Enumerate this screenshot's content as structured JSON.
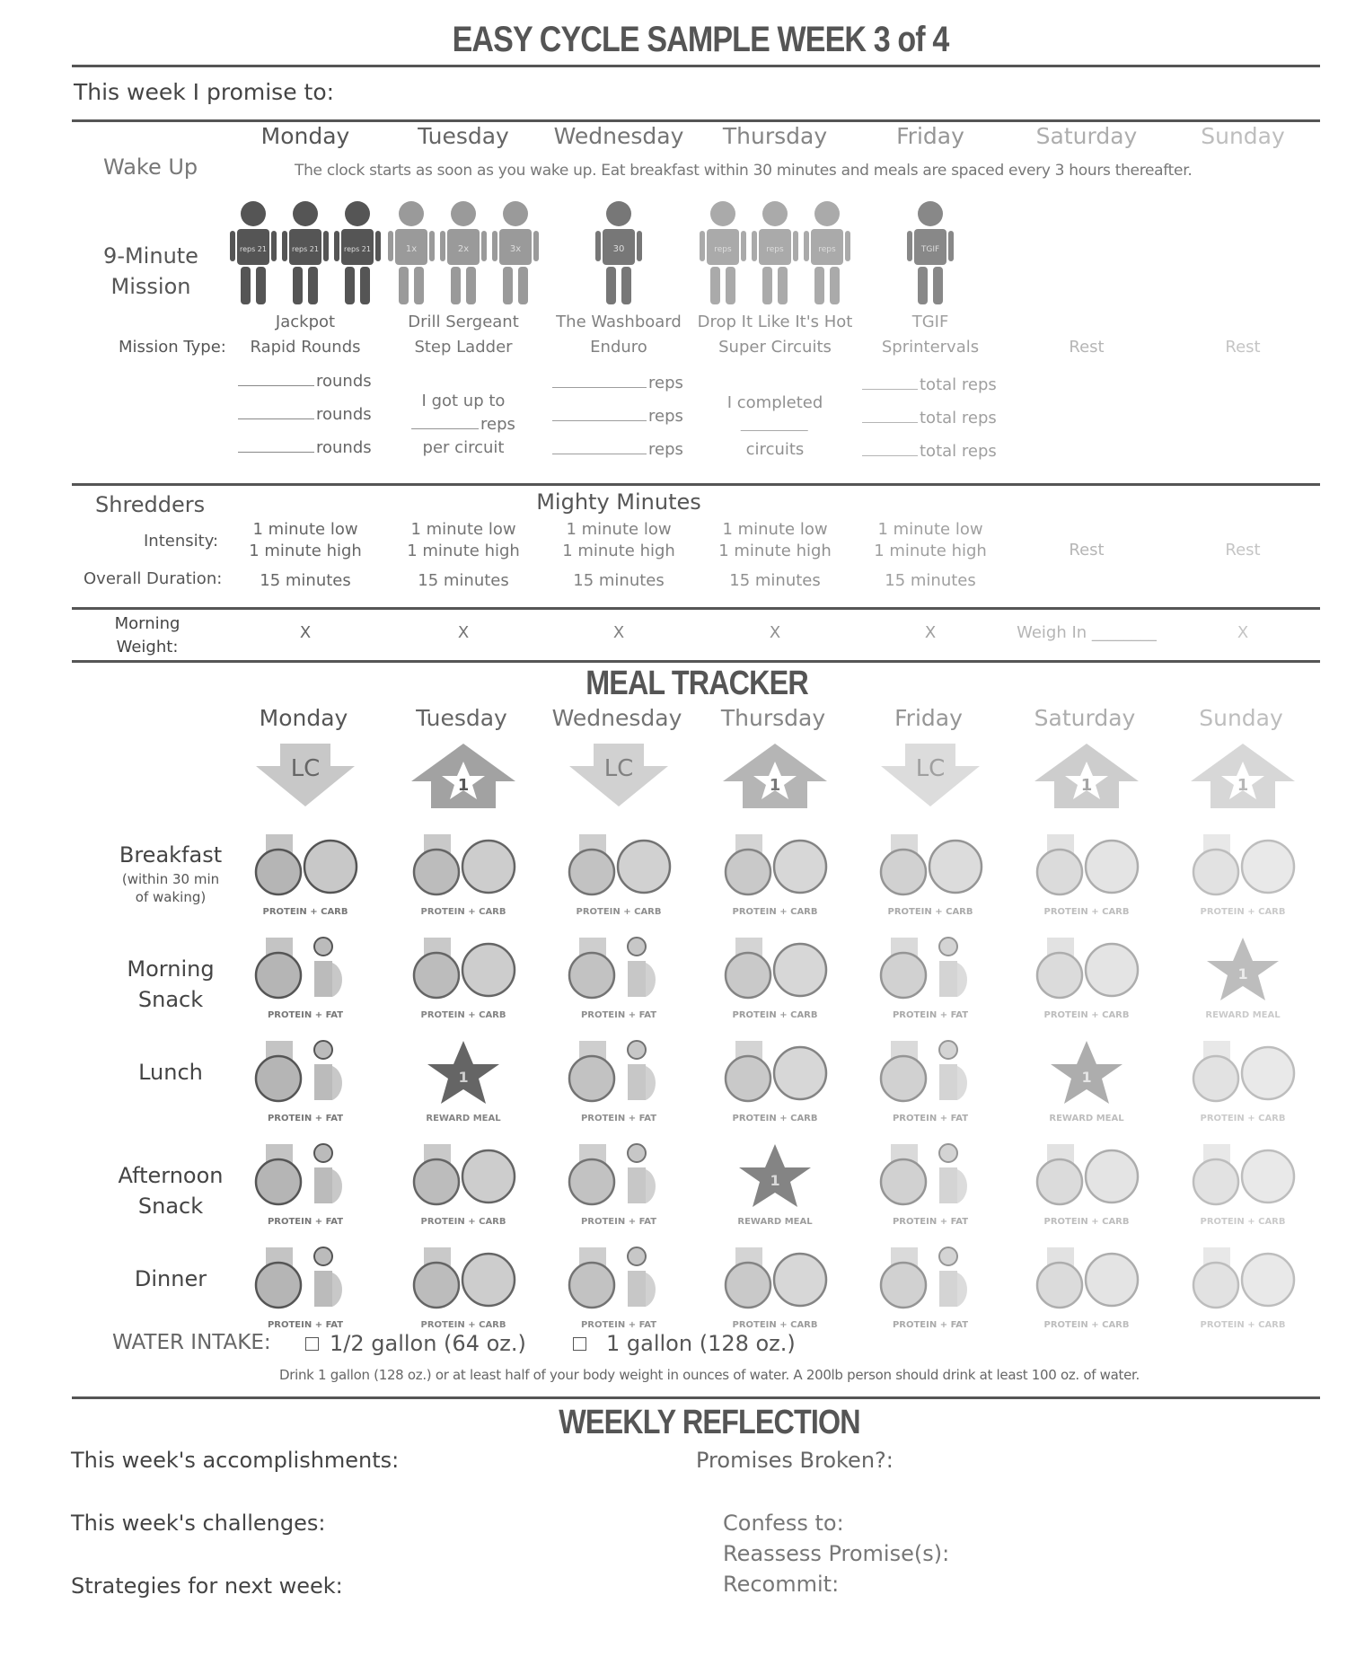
{
  "title": "EASY CYCLE SAMPLE WEEK 3 of 4",
  "promise_label": "This week I promise to:",
  "days": [
    "Monday",
    "Tuesday",
    "Wednesday",
    "Thursday",
    "Friday",
    "Saturday",
    "Sunday"
  ],
  "wake_up": {
    "label": "Wake Up",
    "text": "The clock starts as soon as you wake up. Eat breakfast within 30 minutes and meals are spaced every 3 hours thereafter."
  },
  "mission": {
    "label": "9-Minute Mission",
    "type_label": "Mission Type:",
    "names": [
      "Jackpot",
      "Drill Sergeant",
      "The Washboard",
      "Drop It Like It's Hot",
      "TGIF",
      "",
      ""
    ],
    "types": [
      "Rapid Rounds",
      "Step Ladder",
      "Enduro",
      "Super Circuits",
      "Sprintervals",
      "Rest",
      "Rest"
    ],
    "figure_labels": [
      "reps 21",
      "1x",
      "2x",
      "3x",
      "30",
      "reps",
      "TGIF"
    ],
    "entries": {
      "monday": [
        "rounds",
        "rounds",
        "rounds"
      ],
      "tuesday": [
        "I got up to",
        "reps",
        "per circuit"
      ],
      "wednesday": [
        "reps",
        "reps",
        "reps"
      ],
      "thursday": [
        "I completed",
        "circuits"
      ],
      "friday": [
        "total reps",
        "total reps",
        "total reps"
      ]
    }
  },
  "shredders": {
    "label": "Shredders",
    "center_label": "Mighty Minutes",
    "intensity_label": "Intensity:",
    "duration_label": "Overall Duration:",
    "intensity": [
      "1 minute low",
      "1 minute high"
    ],
    "duration": "15 minutes",
    "rest": "Rest"
  },
  "weight": {
    "label": "Morning Weight:",
    "values": [
      "X",
      "X",
      "X",
      "X",
      "X",
      "Weigh In ________",
      "X"
    ]
  },
  "meal_tracker": {
    "title": "MEAL TRACKER",
    "day_types": [
      {
        "type": "LC",
        "label": "LC"
      },
      {
        "type": "HC",
        "label": "1",
        "tag": "HC"
      },
      {
        "type": "LC",
        "label": "LC"
      },
      {
        "type": "HC",
        "label": "1",
        "tag": "HC"
      },
      {
        "type": "LC",
        "label": "LC"
      },
      {
        "type": "HC",
        "label": "1"
      },
      {
        "type": "HC",
        "label": "1"
      }
    ],
    "meals": [
      {
        "name": "Breakfast",
        "sub": "(within 30 min of waking)",
        "items": [
          "PC",
          "PC",
          "PC",
          "PC",
          "PC",
          "PC",
          "PC"
        ]
      },
      {
        "name": "Morning Snack",
        "items": [
          "PF",
          "PC",
          "PF",
          "PC",
          "PF",
          "PC",
          "R"
        ]
      },
      {
        "name": "Lunch",
        "items": [
          "PF",
          "R",
          "PF",
          "PC",
          "PF",
          "R",
          "PC"
        ]
      },
      {
        "name": "Afternoon Snack",
        "items": [
          "PF",
          "PC",
          "PF",
          "R",
          "PF",
          "PC",
          "PC"
        ]
      },
      {
        "name": "Dinner",
        "items": [
          "PF",
          "PC",
          "PF",
          "PC",
          "PF",
          "PC",
          "PC"
        ]
      }
    ],
    "captions": {
      "PC": "PROTEIN + CARB",
      "PF": "PROTEIN + FAT",
      "R": "REWARD MEAL"
    },
    "reward_number": "1"
  },
  "water": {
    "label": "WATER INTAKE:",
    "options": [
      "1/2 gallon (64 oz.)",
      "1 gallon (128 oz.)"
    ],
    "note": "Drink 1 gallon (128 oz.) or at least half of your body weight in ounces of water. A 200lb person should drink at least 100 oz. of water."
  },
  "reflection": {
    "title": "WEEKLY REFLECTION",
    "left": [
      "This week's accomplishments:",
      "This week's challenges:",
      "Strategies for next week:"
    ],
    "broken": "Promises Broken?:",
    "right": [
      "Confess to:",
      "Reassess Promise(s):",
      "Recommit:"
    ]
  },
  "colors": {
    "ink": "#444444",
    "rule": "#555555",
    "fill_gray": "#a8a8a8",
    "dark_figure": "#555555"
  }
}
